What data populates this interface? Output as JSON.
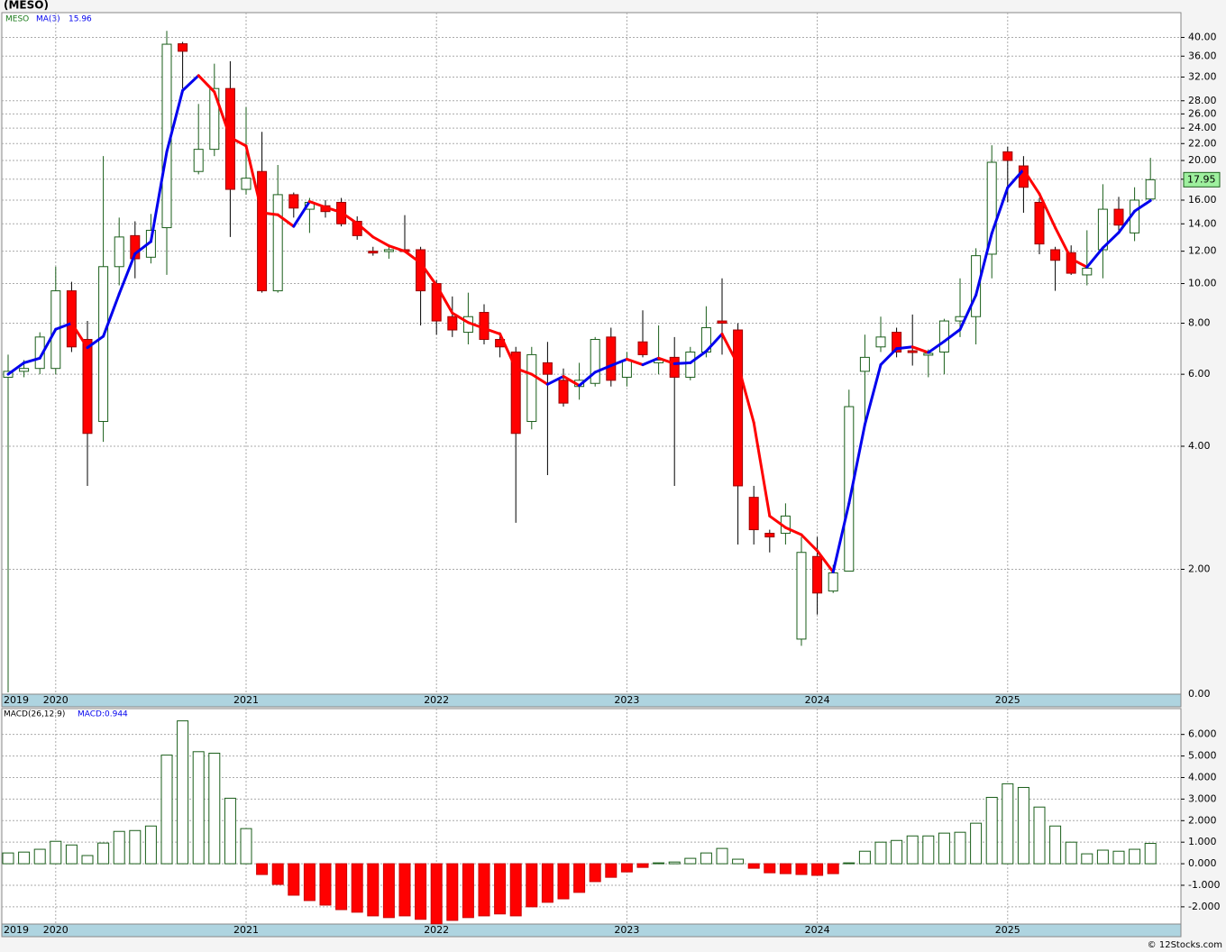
{
  "title": "(MESO)",
  "footer": "© 12Stocks.com",
  "chart_data": [
    {
      "type": "candlestick",
      "ticker": "MESO",
      "log_scale": true,
      "grid": true,
      "up_color": "#1a5e1a",
      "down_color": "#ff0000",
      "categories": [
        "2019",
        null,
        null,
        "2020",
        null,
        null,
        null,
        null,
        null,
        null,
        null,
        null,
        null,
        null,
        null,
        "2021",
        null,
        null,
        null,
        null,
        null,
        null,
        null,
        null,
        null,
        null,
        null,
        "2022",
        null,
        null,
        null,
        null,
        null,
        null,
        null,
        null,
        null,
        null,
        null,
        "2023",
        null,
        null,
        null,
        null,
        null,
        null,
        null,
        null,
        null,
        null,
        null,
        "2024",
        null,
        null,
        null,
        null,
        null,
        null,
        null,
        null,
        null,
        null,
        null,
        "2025",
        null,
        null,
        null,
        null,
        null,
        null,
        null,
        null,
        null
      ],
      "open": [
        5.9,
        6.1,
        6.2,
        6.2,
        9.6,
        7.3,
        4.6,
        11,
        13.1,
        11.6,
        13.7,
        38.6,
        18.8,
        21.3,
        30,
        17,
        18.8,
        9.6,
        16.5,
        15.2,
        15.5,
        15.8,
        14.2,
        12.0,
        12.0,
        12.1,
        12.1,
        10.0,
        8.3,
        7.6,
        8.5,
        7.3,
        6.8,
        4.6,
        6.4,
        5.8,
        5.6,
        5.7,
        7.4,
        5.9,
        7.2,
        6.4,
        6.6,
        5.9,
        6.8,
        8.1,
        7.7,
        3.0,
        2.45,
        2.45,
        1.35,
        2.15,
        1.77,
        1.98,
        6.1,
        7.0,
        7.6,
        6.85,
        6.7,
        6.8,
        8.1,
        8.3,
        11.8,
        21,
        19.4,
        15.8,
        12.1,
        11.9,
        10.5,
        12.1,
        15.2,
        13.3,
        16.1
      ],
      "high": [
        6.7,
        6.5,
        7.6,
        11,
        10.1,
        8.1,
        20.5,
        14.5,
        14.2,
        14.8,
        41.5,
        39,
        27.5,
        34.5,
        35,
        27,
        23.5,
        19.5,
        16.7,
        16.2,
        16,
        16.2,
        14.6,
        12.3,
        12.4,
        14.7,
        12.3,
        10.2,
        9.3,
        9.5,
        8.9,
        7.6,
        7.0,
        7.0,
        7.2,
        6.2,
        6.4,
        7.4,
        7.8,
        6.8,
        8.6,
        7.9,
        7.4,
        7.0,
        8.8,
        10.3,
        8.0,
        3.2,
        2.5,
        2.9,
        2.4,
        2.4,
        2.05,
        5.5,
        7.5,
        8.3,
        7.8,
        8.4,
        6.9,
        8.2,
        10.3,
        12.2,
        21.8,
        21.6,
        20.5,
        16.2,
        12.3,
        12.4,
        13.5,
        17.5,
        16.3,
        17.2,
        20.3
      ],
      "low": [
        1.0,
        5.9,
        6.0,
        6.0,
        6.8,
        3.2,
        4.1,
        9.9,
        10.3,
        11.2,
        10.5,
        30,
        18.5,
        20.5,
        13,
        16.5,
        9.5,
        9.5,
        14.5,
        13.3,
        14.5,
        13.8,
        12.8,
        11.7,
        11.5,
        11.9,
        7.9,
        7.5,
        7.4,
        7.1,
        7.1,
        6.6,
        2.6,
        4.4,
        3.4,
        5.0,
        5.2,
        5.6,
        5.6,
        5.6,
        6.6,
        6.0,
        3.2,
        5.8,
        6.6,
        6.7,
        2.3,
        2.3,
        2.2,
        2.3,
        1.3,
        1.55,
        1.75,
        1.98,
        4.5,
        6.8,
        6.6,
        6.3,
        5.9,
        6.0,
        7.4,
        7.1,
        10.3,
        15.8,
        14.9,
        11.8,
        9.6,
        10.5,
        9.9,
        10.3,
        13.5,
        12.7,
        15.9
      ],
      "close": [
        6.1,
        6.2,
        7.4,
        9.6,
        7.0,
        4.3,
        11,
        13,
        11.5,
        13.5,
        38.5,
        37,
        21.3,
        30,
        17,
        18.1,
        9.6,
        16.5,
        15.3,
        15.8,
        15.0,
        14.0,
        13.1,
        11.9,
        12.1,
        12.0,
        9.6,
        8.1,
        7.7,
        8.3,
        7.3,
        7.0,
        4.3,
        6.7,
        6.0,
        5.1,
        5.8,
        7.3,
        5.8,
        6.5,
        6.7,
        6.5,
        5.9,
        6.8,
        7.8,
        8.0,
        3.2,
        2.5,
        2.4,
        2.7,
        2.2,
        1.75,
        1.96,
        5.0,
        6.6,
        7.4,
        6.8,
        6.8,
        6.75,
        8.1,
        8.3,
        11.7,
        19.8,
        20,
        17.2,
        12.5,
        11.4,
        10.6,
        10.9,
        15.2,
        13.9,
        16.0,
        17.95
      ],
      "ma": {
        "name": "MA(3)",
        "rise_color": "#0000ee",
        "fall_color": "#ff0000",
        "values": [
          6.0,
          6.4,
          6.57,
          7.73,
          8.0,
          6.97,
          7.43,
          9.43,
          11.83,
          12.67,
          21.0,
          29.67,
          32.27,
          29.43,
          22.77,
          21.7,
          14.9,
          14.73,
          13.8,
          15.87,
          15.37,
          14.93,
          14.03,
          13.0,
          12.37,
          12.0,
          11.23,
          9.9,
          8.47,
          8.03,
          7.77,
          7.53,
          6.2,
          6.0,
          5.67,
          5.93,
          5.63,
          6.07,
          6.3,
          6.53,
          6.33,
          6.57,
          6.37,
          6.4,
          6.83,
          7.53,
          6.33,
          4.57,
          2.7,
          2.53,
          2.43,
          2.22,
          1.97,
          2.9,
          4.52,
          6.33,
          6.93,
          7.0,
          6.78,
          7.22,
          7.72,
          9.37,
          13.27,
          17.17,
          19.0,
          16.57,
          13.7,
          11.5,
          10.97,
          12.23,
          13.33,
          15.03,
          15.96
        ]
      },
      "ylim": [
        0.99,
        46
      ],
      "yticks": [
        {
          "value": 2,
          "label": "2.00"
        },
        {
          "value": 4,
          "label": "4.00"
        },
        {
          "value": 6,
          "label": "6.00"
        },
        {
          "value": 8,
          "label": "8.00"
        },
        {
          "value": 10,
          "label": "10.00"
        },
        {
          "value": 12,
          "label": "12.00"
        },
        {
          "value": 14,
          "label": "14.00"
        },
        {
          "value": 16,
          "label": "16.00"
        },
        {
          "value": 18,
          "label": "18.00"
        },
        {
          "value": 20,
          "label": "20.00"
        },
        {
          "value": 22,
          "label": "22.00"
        },
        {
          "value": 24,
          "label": "24.00"
        },
        {
          "value": 26,
          "label": "26.00"
        },
        {
          "value": 28,
          "label": "28.00"
        },
        {
          "value": 32,
          "label": "32.00"
        },
        {
          "value": 36,
          "label": "36.00"
        },
        {
          "value": 40,
          "label": "40.00"
        }
      ],
      "y_floor_label": "0.00"
    },
    {
      "type": "bar",
      "title": "MACD(26,12,9)",
      "current_label": "MACD:0.944",
      "up_color": "#1a5e1a",
      "down_color": "#ff0000",
      "grid": true,
      "categories": [
        "2019",
        null,
        null,
        "2020",
        null,
        null,
        null,
        null,
        null,
        null,
        null,
        null,
        null,
        null,
        null,
        "2021",
        null,
        null,
        null,
        null,
        null,
        null,
        null,
        null,
        null,
        null,
        null,
        "2022",
        null,
        null,
        null,
        null,
        null,
        null,
        null,
        null,
        null,
        null,
        null,
        "2023",
        null,
        null,
        null,
        null,
        null,
        null,
        null,
        null,
        null,
        null,
        null,
        "2024",
        null,
        null,
        null,
        null,
        null,
        null,
        null,
        null,
        null,
        null,
        null,
        "2025",
        null,
        null,
        null,
        null,
        null,
        null,
        null,
        null,
        null
      ],
      "values": [
        0.5,
        0.54,
        0.67,
        1.04,
        0.87,
        0.38,
        0.96,
        1.5,
        1.54,
        1.75,
        5.04,
        6.63,
        5.2,
        5.13,
        3.04,
        1.63,
        -0.5,
        -0.96,
        -1.46,
        -1.71,
        -1.92,
        -2.13,
        -2.25,
        -2.42,
        -2.5,
        -2.42,
        -2.58,
        -2.79,
        -2.63,
        -2.5,
        -2.42,
        -2.33,
        -2.42,
        -2.0,
        -1.79,
        -1.63,
        -1.33,
        -0.83,
        -0.63,
        -0.38,
        -0.17,
        0.04,
        0.08,
        0.25,
        0.5,
        0.71,
        0.21,
        -0.21,
        -0.42,
        -0.46,
        -0.5,
        -0.54,
        -0.46,
        0.04,
        0.58,
        1.0,
        1.08,
        1.29,
        1.29,
        1.42,
        1.46,
        1.88,
        3.08,
        3.71,
        3.54,
        2.63,
        1.75,
        1.0,
        0.46,
        0.63,
        0.58,
        0.67,
        0.944
      ],
      "ylim": [
        -2.8,
        7.2
      ],
      "yticks": [
        {
          "value": -2,
          "label": "-2.000"
        },
        {
          "value": -1,
          "label": "-1.000"
        },
        {
          "value": 0,
          "label": "0.000"
        },
        {
          "value": 1,
          "label": "1.000"
        },
        {
          "value": 2,
          "label": "2.000"
        },
        {
          "value": 3,
          "label": "3.000"
        },
        {
          "value": 4,
          "label": "4.000"
        },
        {
          "value": 5,
          "label": "5.000"
        },
        {
          "value": 6,
          "label": "6.000"
        }
      ]
    }
  ]
}
